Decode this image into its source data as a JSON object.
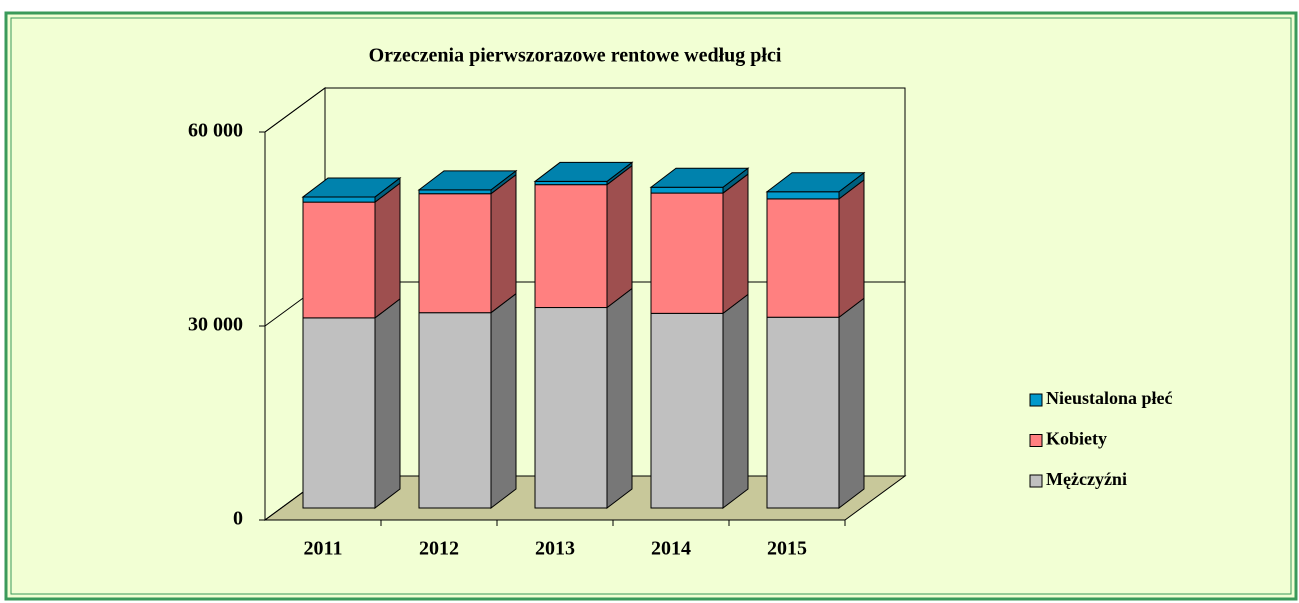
{
  "chart_data": {
    "type": "bar3d_stacked",
    "title": "Orzeczenia pierwszorazowe rentowe według płci",
    "categories": [
      "2011",
      "2012",
      "2013",
      "2014",
      "2015"
    ],
    "series": [
      {
        "name": "Mężczyźni",
        "color": "#c0c0c0",
        "values": [
          29400,
          30200,
          31000,
          30100,
          29500
        ]
      },
      {
        "name": "Kobiety",
        "color": "#ff8080",
        "values": [
          17900,
          18400,
          19000,
          18600,
          18300
        ]
      },
      {
        "name": "Nieustalona płeć",
        "color": "#0099cc",
        "values": [
          800,
          600,
          500,
          900,
          1100
        ]
      }
    ],
    "ylim": [
      0,
      60000
    ],
    "yticks": [
      {
        "value": 0,
        "label": "0"
      },
      {
        "value": 30000,
        "label": "30 000"
      },
      {
        "value": 60000,
        "label": "60 000"
      }
    ],
    "grid": true,
    "legend": "right"
  }
}
